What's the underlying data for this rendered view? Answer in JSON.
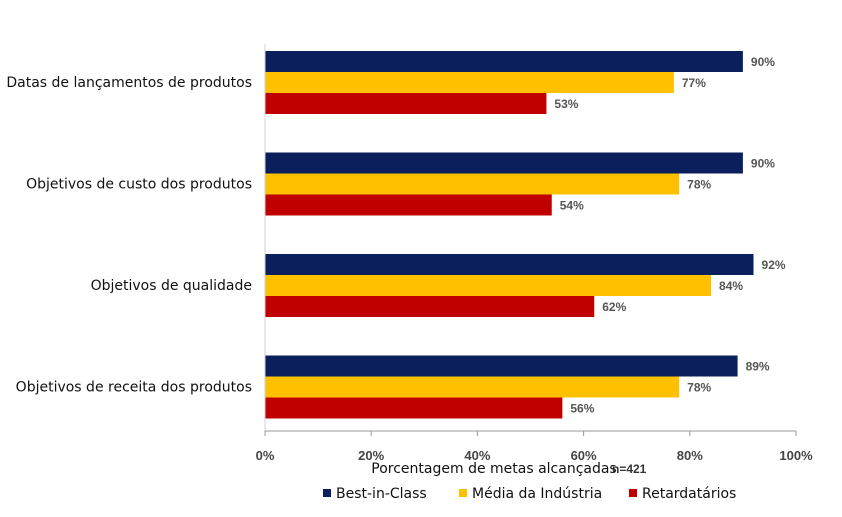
{
  "chart_data": {
    "type": "bar",
    "orientation": "horizontal",
    "categories": [
      "Datas de lançamentos de produtos",
      "Objetivos de custo dos produtos",
      "Objetivos de qualidade",
      "Objetivos de receita dos produtos"
    ],
    "series": [
      {
        "name": "Best-in-Class",
        "color": "#0a1f5c",
        "values": [
          90,
          90,
          92,
          89
        ],
        "labels": [
          "90%",
          "90%",
          "92%",
          "89%"
        ]
      },
      {
        "name": "Média da Indústria",
        "color": "#ffc000",
        "values": [
          77,
          78,
          84,
          78
        ],
        "labels": [
          "77%",
          "78%",
          "84%",
          "78%"
        ]
      },
      {
        "name": "Retardatários",
        "color": "#c00000",
        "values": [
          53,
          54,
          62,
          56
        ],
        "labels": [
          "53%",
          "54%",
          "62%",
          "56%"
        ]
      }
    ],
    "xlabel": "Porcentagem de metas alcançadas",
    "note": "n=421",
    "xlim": [
      0,
      100
    ],
    "xticks": [
      {
        "value": 0,
        "label": "0%"
      },
      {
        "value": 20,
        "label": "20%"
      },
      {
        "value": 40,
        "label": "40%"
      },
      {
        "value": 60,
        "label": "60%"
      },
      {
        "value": 80,
        "label": "80%"
      },
      {
        "value": 100,
        "label": "100%"
      }
    ],
    "grid": false,
    "legend_position": "bottom"
  }
}
